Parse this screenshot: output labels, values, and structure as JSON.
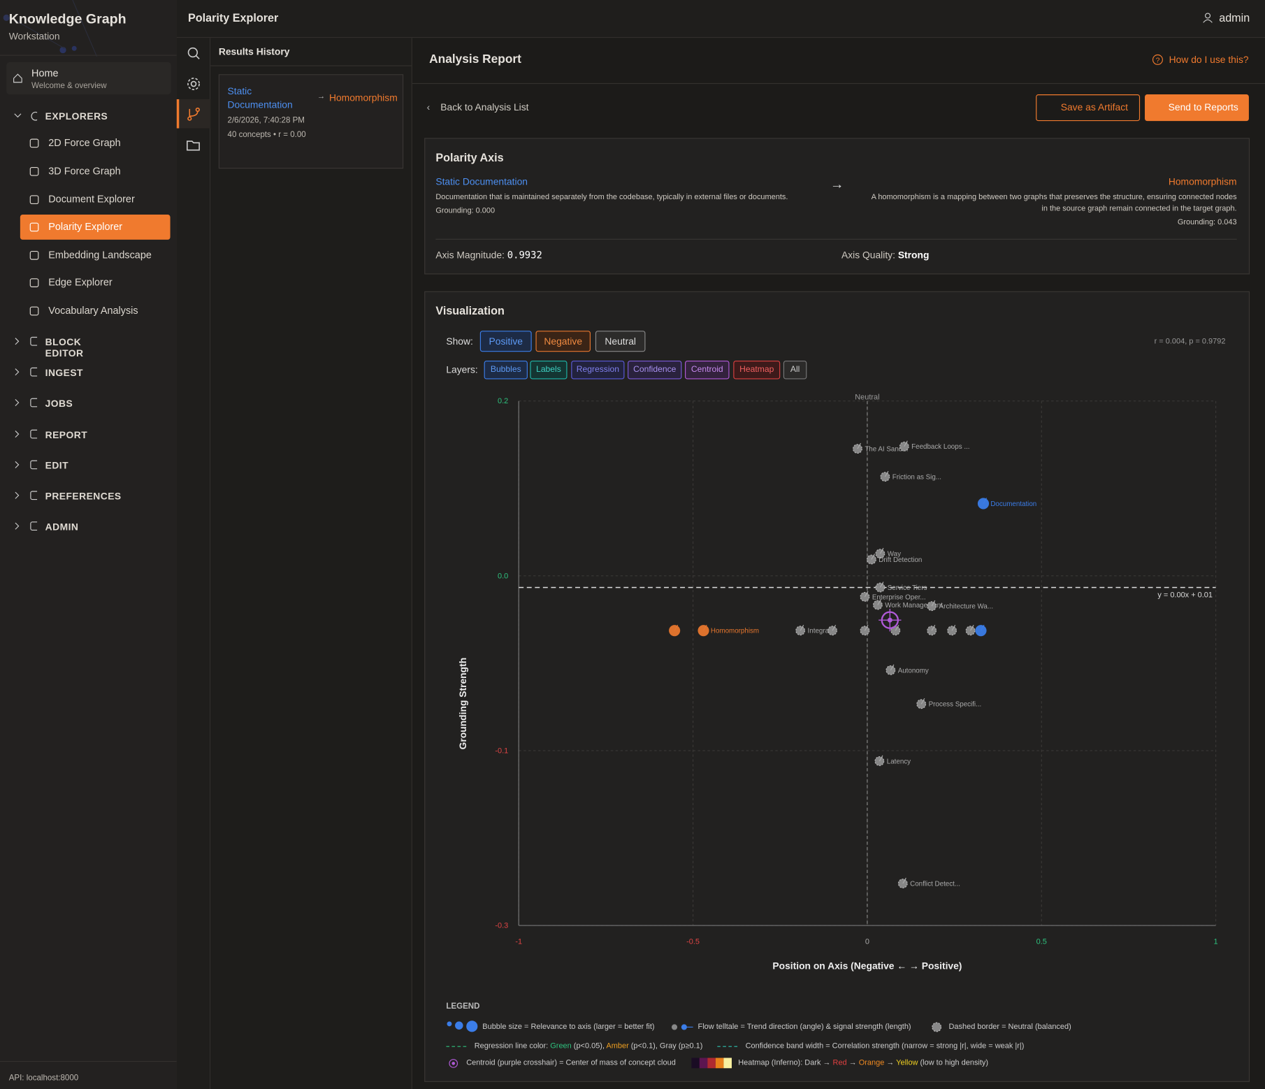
{
  "sidebar": {
    "title": "Knowledge Graph",
    "subtitle": "Workstation",
    "home": {
      "label": "Home",
      "sub": "Welcome & overview"
    },
    "explorers": {
      "label": "EXPLORERS",
      "items": [
        "2D Force Graph",
        "3D Force Graph",
        "Document Explorer",
        "Polarity Explorer",
        "Embedding Landscape",
        "Edge Explorer",
        "Vocabulary Analysis"
      ]
    },
    "sections": [
      "BLOCK EDITOR",
      "INGEST",
      "JOBS",
      "REPORT",
      "EDIT",
      "PREFERENCES",
      "ADMIN"
    ],
    "api": "API: localhost:8000"
  },
  "header": {
    "title": "Polarity Explorer",
    "user": "admin"
  },
  "history": {
    "title": "Results History",
    "entries": [
      {
        "from": "Static Documentation",
        "to": "Homomorphism",
        "date": "2/6/2026, 7:40:28 PM",
        "meta": "40 concepts • r = 0.00"
      }
    ]
  },
  "report": {
    "title": "Analysis Report",
    "help": "How do I use this?",
    "back": "Back to Analysis List",
    "buttons": [
      "Save as Artifact",
      "Send to Reports"
    ],
    "axis": {
      "title": "Polarity Axis",
      "negative": {
        "name": "Static Documentation",
        "description": "Documentation that is maintained separately from the codebase, typically in external files or documents.",
        "grounding": "Grounding: 0.000"
      },
      "positive": {
        "name": "Homomorphism",
        "description": "A homomorphism is a mapping between two graphs that preserves the structure, ensuring connected nodes in the source graph remain connected in the target graph.",
        "grounding": "Grounding: 0.043"
      },
      "magnitude_label": "Axis Magnitude:",
      "magnitude": "0.9932",
      "quality_label": "Axis Quality:",
      "quality": "Strong"
    },
    "visualization": {
      "title": "Visualization",
      "show_label": "Show:",
      "stats": "r = 0.004, p = 0.9792",
      "layers_label": "Layers:",
      "layers": [
        "Bubbles",
        "Labels",
        "Regression",
        "Confidence",
        "Centroid",
        "Heatmap",
        "All"
      ],
      "legend": {
        "title": "LEGEND",
        "bubble": "Bubble size = Relevance to axis (larger = better fit)",
        "flow": "Flow telltale = Trend direction (angle) & signal strength (length)",
        "neutral": "Dashed border = Neutral (balanced)",
        "regression": [
          "Regression line color: ",
          "Green",
          " (p<0.05), ",
          "Amber",
          " (p<0.1), Gray (p≥0.1)"
        ],
        "confidence": "Confidence band width = Correlation strength (narrow = strong |r|, wide = weak |r|)",
        "centroid": "Centroid (purple crosshair) = Center of mass of concept cloud",
        "heatmap": [
          "Heatmap (Inferno): Dark → ",
          "Red",
          " → ",
          "Orange",
          " → ",
          "Yellow",
          " (low to high density)"
        ]
      }
    }
  },
  "chart_data": {
    "type": "scatter",
    "xlabel": "Position on Axis (Negative ← → Positive)",
    "ylabel": "Grounding Strength",
    "xlim": [
      -1,
      1
    ],
    "xticks": [
      -1,
      -0.5,
      0,
      0.5,
      1
    ],
    "ylim": [
      -0.28,
      0.17
    ],
    "yticks": [
      {
        "value": 0.17,
        "label": "0.2"
      },
      {
        "value": 0.02,
        "label": "0.0"
      },
      {
        "value": -0.13,
        "label": "-0.1"
      },
      {
        "value": -0.28,
        "label": "-0.3"
      }
    ],
    "grid": true,
    "neutral_label": "Neutral",
    "series": [
      {
        "name": "Positive",
        "color": "#3b7de8",
        "x": [
          0.333,
          0.326
        ],
        "values": [
          0.082,
          -0.027
        ],
        "labels": [
          "Documentation",
          null
        ]
      },
      {
        "name": "Negative",
        "color": "#e8772e",
        "x": [
          -0.553,
          -0.47
        ],
        "values": [
          -0.027,
          -0.027
        ],
        "labels": [
          null,
          "Homomorphism"
        ]
      },
      {
        "name": "Neutral",
        "color": "#8d8d8d",
        "x": [
          -0.028,
          0.106,
          0.051,
          0.037,
          0.012,
          0.037,
          -0.007,
          0.03,
          0.185,
          -0.192,
          -0.1,
          -0.007,
          0.081,
          0.185,
          0.243,
          0.296,
          0.067,
          0.155,
          0.035,
          0.102
        ],
        "values": [
          0.129,
          0.131,
          0.105,
          0.039,
          0.034,
          0.01,
          0.002,
          -0.005,
          -0.006,
          -0.027,
          -0.027,
          -0.027,
          -0.027,
          -0.027,
          -0.027,
          -0.027,
          -0.061,
          -0.09,
          -0.139,
          -0.244
        ],
        "labels": [
          "The AI Sand...",
          "Feedback Loops ...",
          "Friction as Sig...",
          "Way",
          "Drift Detection",
          "Service Tiers",
          "Enterprise Oper...",
          "Work Management",
          "Architecture Wa...",
          "Integra...",
          null,
          null,
          null,
          null,
          null,
          null,
          "Autonomy",
          "Process Specifi...",
          "Latency",
          "Conflict Detect..."
        ]
      }
    ],
    "regression": {
      "slope": 0.0,
      "intercept": 0.01,
      "label": "y = 0.00x + 0.01"
    },
    "centroid": {
      "x": 0.065,
      "y": -0.018,
      "color": "#b05ad8"
    }
  }
}
